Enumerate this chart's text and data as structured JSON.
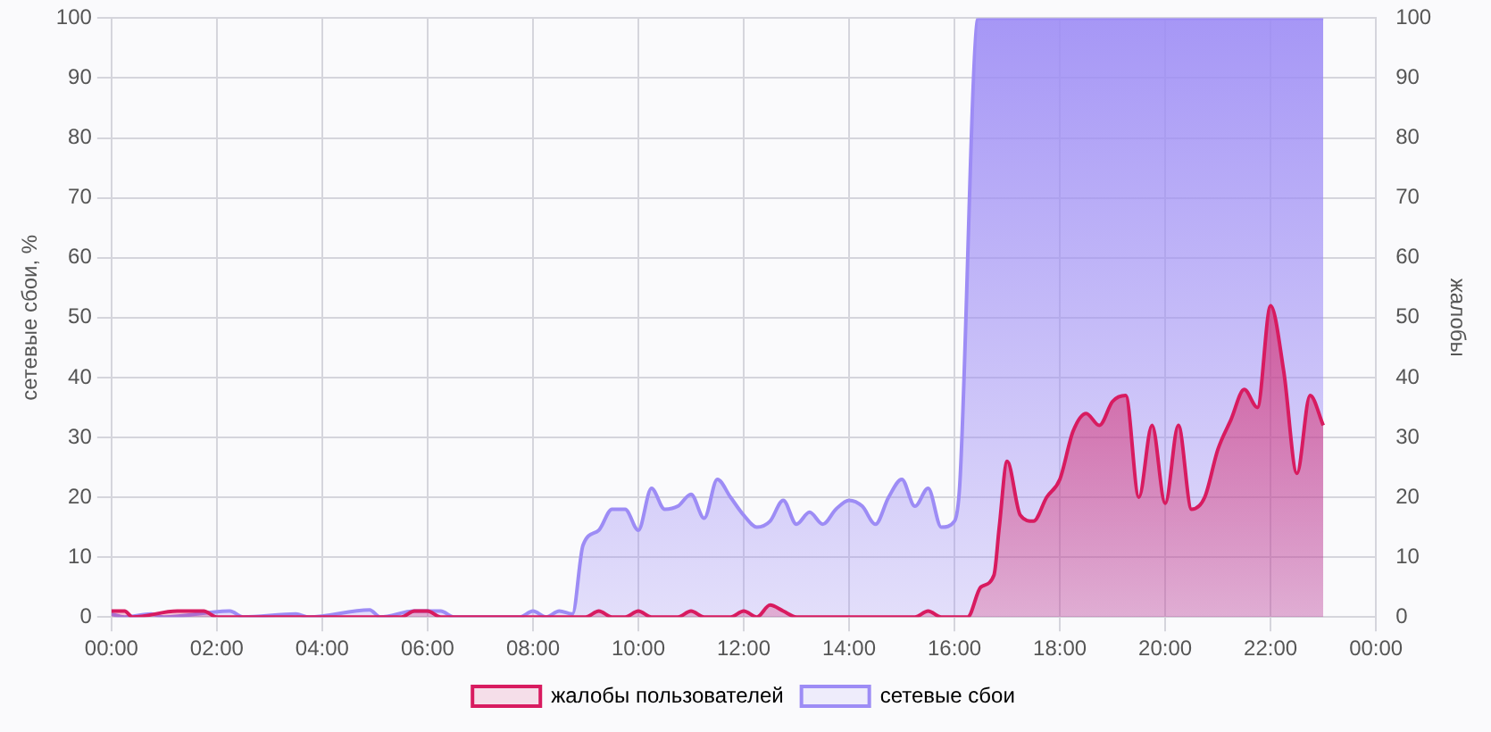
{
  "chart_data": {
    "type": "area",
    "xlabel": null,
    "ylabel": "сетевые сбои, %",
    "y2label": "жалобы",
    "xlim": [
      0,
      24
    ],
    "xticks": [
      {
        "value": 0,
        "label": "00:00"
      },
      {
        "value": 2,
        "label": "02:00"
      },
      {
        "value": 4,
        "label": "04:00"
      },
      {
        "value": 6,
        "label": "06:00"
      },
      {
        "value": 8,
        "label": "08:00"
      },
      {
        "value": 10,
        "label": "10:00"
      },
      {
        "value": 12,
        "label": "12:00"
      },
      {
        "value": 14,
        "label": "14:00"
      },
      {
        "value": 16,
        "label": "16:00"
      },
      {
        "value": 18,
        "label": "18:00"
      },
      {
        "value": 20,
        "label": "20:00"
      },
      {
        "value": 22,
        "label": "22:00"
      },
      {
        "value": 24,
        "label": "00:00"
      }
    ],
    "ylim": [
      0,
      100
    ],
    "yticks": [
      0,
      10,
      20,
      30,
      40,
      50,
      60,
      70,
      80,
      90,
      100
    ],
    "y2lim": [
      0,
      100
    ],
    "y2ticks": [
      0,
      10,
      20,
      30,
      40,
      50,
      60,
      70,
      80,
      90,
      100
    ],
    "grid": true,
    "legend": "bottom",
    "marker": "none",
    "series": [
      {
        "name": "жалобы пользователей",
        "color": "#d81b60",
        "axis": "y2",
        "x": [
          0,
          0.25,
          0.4,
          1.25,
          1.75,
          2,
          5.5,
          5.75,
          6,
          6.25,
          9,
          9.25,
          9.5,
          9.75,
          10,
          10.25,
          10.75,
          11,
          11.25,
          11.75,
          12,
          12.25,
          12.5,
          12.75,
          13,
          15.25,
          15.5,
          15.75,
          16.25,
          16.5,
          16.75,
          16.85,
          17,
          17.25,
          17.5,
          17.75,
          18,
          18.25,
          18.5,
          18.75,
          19,
          19.25,
          19.5,
          19.75,
          20,
          20.25,
          20.5,
          20.75,
          21,
          21.25,
          21.5,
          21.75,
          22,
          22.25,
          22.5,
          22.75,
          23
        ],
        "values": [
          1,
          1,
          0,
          1,
          1,
          0,
          0,
          1,
          1,
          0,
          0,
          1,
          0,
          0,
          1,
          0,
          0,
          1,
          0,
          0,
          1,
          0,
          2,
          1,
          0,
          0,
          1,
          0,
          0,
          5,
          7,
          15,
          26,
          17,
          16,
          20,
          23,
          31,
          34,
          32,
          36,
          37,
          20,
          32,
          19,
          32,
          18,
          20,
          28,
          33,
          38,
          35,
          52,
          41,
          24,
          37,
          32
        ]
      },
      {
        "name": "сетевые сбои",
        "color": "#9d8cf5",
        "axis": "y",
        "x": [
          0,
          0.25,
          0.75,
          1,
          2.25,
          2.5,
          3.5,
          3.75,
          4.9,
          5.1,
          5.75,
          6.25,
          6.5,
          7.75,
          8,
          8.25,
          8.5,
          8.75,
          8.95,
          9.25,
          9.5,
          9.75,
          10,
          10.25,
          10.5,
          10.75,
          11,
          11.25,
          11.5,
          11.75,
          12,
          12.25,
          12.5,
          12.75,
          13,
          13.25,
          13.5,
          13.75,
          14,
          14.25,
          14.5,
          14.75,
          15,
          15.25,
          15.5,
          15.75,
          16,
          16.1,
          16.45,
          17,
          18,
          19,
          20,
          21,
          22,
          23
        ],
        "values": [
          0.5,
          0,
          0.5,
          0,
          1,
          0,
          0.5,
          0,
          1.2,
          0,
          1,
          1,
          0,
          0,
          1,
          0,
          1,
          0.5,
          12,
          14.5,
          18,
          18,
          14.5,
          21.5,
          18,
          18.5,
          20.5,
          16.5,
          23,
          20,
          17,
          15,
          16,
          19.5,
          15.5,
          17.5,
          15.5,
          18,
          19.5,
          18.5,
          15.5,
          20,
          23,
          18.5,
          21.5,
          15,
          16,
          22,
          100,
          100,
          100,
          100,
          100,
          100,
          100,
          100
        ]
      }
    ]
  }
}
